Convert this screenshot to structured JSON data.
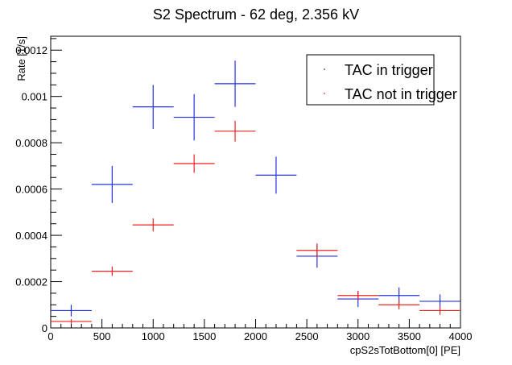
{
  "chart_data": {
    "type": "scatter",
    "title": "S2 Spectrum - 62 deg, 2.356 kV",
    "xlabel": "cpS2sTotBottom[0] [PE]",
    "ylabel": "Rate [1/s]",
    "xlim": [
      0,
      4000
    ],
    "ylim": [
      0,
      0.00126
    ],
    "x_ticks": [
      0,
      500,
      1000,
      1500,
      2000,
      2500,
      3000,
      3500,
      4000
    ],
    "x_tick_labels": [
      "0",
      "500",
      "1000",
      "1500",
      "2000",
      "2500",
      "3000",
      "3500",
      "4000"
    ],
    "y_ticks": [
      0,
      0.0002,
      0.0004,
      0.0006,
      0.0008,
      0.001,
      0.0012
    ],
    "y_tick_labels": [
      "0",
      "0.0002",
      "0.0004",
      "0.0006",
      "0.0008",
      "0.001",
      "0.0012"
    ],
    "grid": false,
    "legend_position": "top-right",
    "series": [
      {
        "name": "TAC in trigger",
        "color": "#2233dd",
        "points": [
          {
            "x": 200,
            "xerr": 200,
            "y": 7.5e-05,
            "yerr": 2.5e-05
          },
          {
            "x": 600,
            "xerr": 200,
            "y": 0.00062,
            "yerr": 8e-05
          },
          {
            "x": 1000,
            "xerr": 200,
            "y": 0.000955,
            "yerr": 9.5e-05
          },
          {
            "x": 1400,
            "xerr": 200,
            "y": 0.00091,
            "yerr": 0.0001
          },
          {
            "x": 1800,
            "xerr": 200,
            "y": 0.001055,
            "yerr": 0.0001
          },
          {
            "x": 2200,
            "xerr": 200,
            "y": 0.00066,
            "yerr": 8e-05
          },
          {
            "x": 2600,
            "xerr": 200,
            "y": 0.00031,
            "yerr": 5e-05
          },
          {
            "x": 3000,
            "xerr": 200,
            "y": 0.000125,
            "yerr": 3.5e-05
          },
          {
            "x": 3400,
            "xerr": 200,
            "y": 0.00014,
            "yerr": 3.5e-05
          },
          {
            "x": 3800,
            "xerr": 200,
            "y": 0.000115,
            "yerr": 3e-05
          }
        ]
      },
      {
        "name": "TAC not in trigger",
        "color": "#ee2222",
        "points": [
          {
            "x": 200,
            "xerr": 200,
            "y": 2.8e-05,
            "yerr": 1e-05
          },
          {
            "x": 600,
            "xerr": 200,
            "y": 0.000245,
            "yerr": 2e-05
          },
          {
            "x": 1000,
            "xerr": 200,
            "y": 0.000445,
            "yerr": 2.8e-05
          },
          {
            "x": 1400,
            "xerr": 200,
            "y": 0.00071,
            "yerr": 4e-05
          },
          {
            "x": 1800,
            "xerr": 200,
            "y": 0.00085,
            "yerr": 4.5e-05
          },
          {
            "x": 2600,
            "xerr": 200,
            "y": 0.000335,
            "yerr": 3e-05
          },
          {
            "x": 3000,
            "xerr": 200,
            "y": 0.00014,
            "yerr": 2e-05
          },
          {
            "x": 3400,
            "xerr": 200,
            "y": 0.0001,
            "yerr": 2e-05
          },
          {
            "x": 3800,
            "xerr": 200,
            "y": 7.5e-05,
            "yerr": 1.8e-05
          }
        ]
      }
    ]
  }
}
